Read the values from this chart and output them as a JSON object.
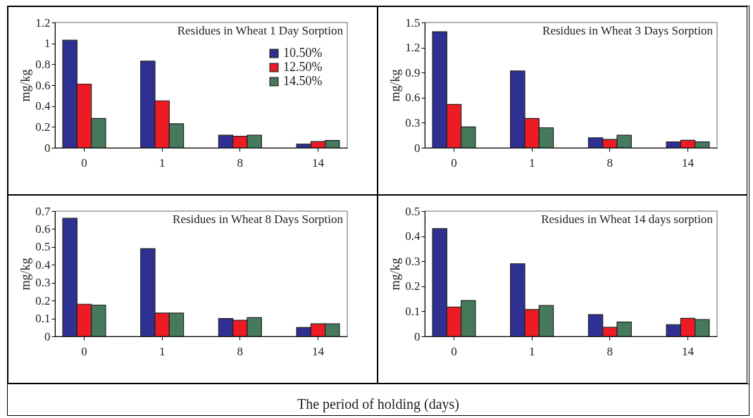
{
  "chart_data": [
    {
      "type": "bar",
      "title": "Residues in Wheat 1 Day Sorption",
      "ylabel": "mg/kg",
      "categories": [
        "0",
        "1",
        "8",
        "14"
      ],
      "ylim": [
        0,
        1.2
      ],
      "yticks": [
        0,
        0.2,
        0.4,
        0.6,
        0.8,
        1,
        1.2
      ],
      "legend": "top right",
      "series": [
        {
          "name": "10.50%",
          "color": "#2e3192",
          "values": [
            1.03,
            0.83,
            0.12,
            0.035
          ]
        },
        {
          "name": "12.50%",
          "color": "#ed1c24",
          "values": [
            0.61,
            0.45,
            0.11,
            0.06
          ]
        },
        {
          "name": "14.50%",
          "color": "#457a5c",
          "values": [
            0.28,
            0.23,
            0.12,
            0.07
          ]
        }
      ]
    },
    {
      "type": "bar",
      "title": "Residues in Wheat 3 Days Sorption",
      "ylabel": "mg/kg",
      "categories": [
        "0",
        "1",
        "8",
        "14"
      ],
      "ylim": [
        0,
        1.5
      ],
      "yticks": [
        0,
        0.3,
        0.6,
        0.9,
        1.2,
        1.5
      ],
      "series": [
        {
          "color": "#2e3192",
          "values": [
            1.39,
            0.92,
            0.12,
            0.07
          ]
        },
        {
          "color": "#ed1c24",
          "values": [
            0.52,
            0.35,
            0.1,
            0.09
          ]
        },
        {
          "color": "#457a5c",
          "values": [
            0.25,
            0.24,
            0.15,
            0.07
          ]
        }
      ]
    },
    {
      "type": "bar",
      "title": "Residues in Wheat 8  Days Sorption",
      "ylabel": "mg/kg",
      "xlabel": "The period of holding (days)",
      "categories": [
        "0",
        "1",
        "8",
        "14"
      ],
      "ylim": [
        0,
        0.7
      ],
      "yticks": [
        0,
        0.1,
        0.2,
        0.3,
        0.4,
        0.5,
        0.6,
        0.7
      ],
      "series": [
        {
          "color": "#2e3192",
          "values": [
            0.66,
            0.49,
            0.1,
            0.05
          ]
        },
        {
          "color": "#ed1c24",
          "values": [
            0.18,
            0.13,
            0.09,
            0.07
          ]
        },
        {
          "color": "#457a5c",
          "values": [
            0.175,
            0.13,
            0.105,
            0.07
          ]
        }
      ]
    },
    {
      "type": "bar",
      "title": "Residues in Wheat 14 days sorption",
      "ylabel": "mg/kg",
      "categories": [
        "0",
        "1",
        "8",
        "14"
      ],
      "ylim": [
        0,
        0.5
      ],
      "yticks": [
        0,
        0.1,
        0.2,
        0.3,
        0.4,
        0.5
      ],
      "series": [
        {
          "color": "#2e3192",
          "values": [
            0.43,
            0.29,
            0.087,
            0.047
          ]
        },
        {
          "color": "#ed1c24",
          "values": [
            0.117,
            0.107,
            0.036,
            0.072
          ]
        },
        {
          "color": "#457a5c",
          "values": [
            0.143,
            0.123,
            0.057,
            0.067
          ]
        }
      ]
    }
  ]
}
